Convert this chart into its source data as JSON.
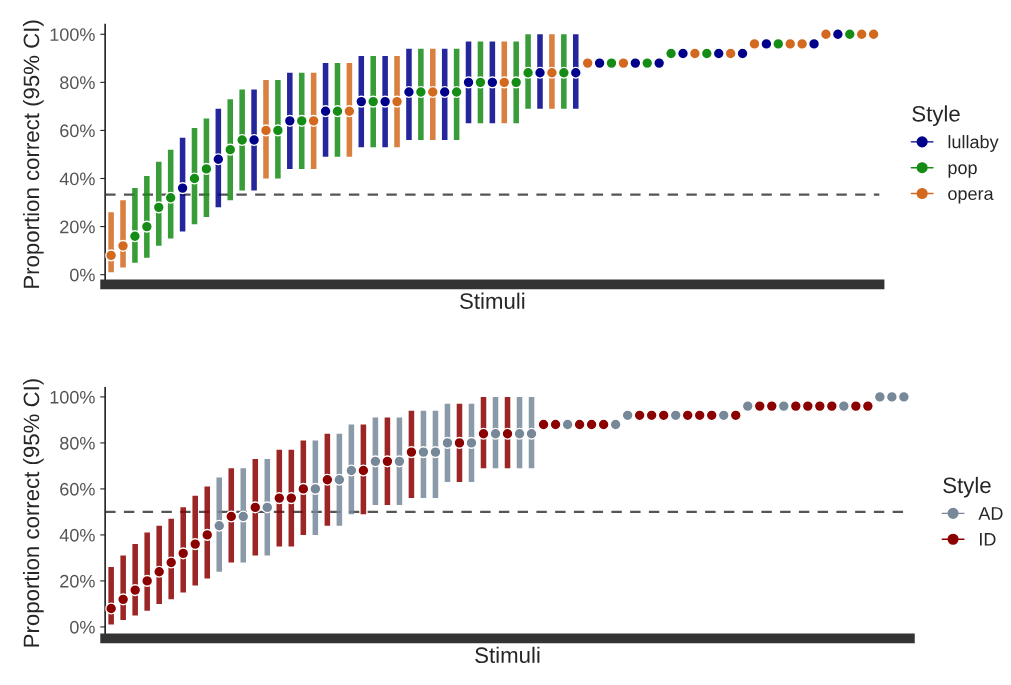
{
  "chart_data": [
    {
      "type": "scatter",
      "ylabel": "Proportion correct (95% CI)",
      "xlabel": "Stimuli",
      "legend_title": "Style",
      "legend": "right",
      "grid": false,
      "marker": "circle",
      "tick_labels": "y",
      "categories": [
        null,
        null,
        null,
        null,
        null,
        null,
        null,
        null,
        null,
        null,
        null,
        null,
        null,
        null,
        null,
        null,
        null,
        null,
        null,
        null,
        null,
        null,
        null,
        null,
        null,
        null,
        null,
        null,
        null,
        null,
        null,
        null,
        null,
        null,
        null,
        null,
        null,
        null,
        null,
        null,
        null,
        null,
        null,
        null,
        null,
        null,
        null,
        null,
        null,
        null,
        null,
        null,
        null,
        null,
        null,
        null,
        null,
        null,
        null,
        null,
        null,
        null,
        null,
        null,
        null
      ],
      "ylim": [
        -4,
        104
      ],
      "yticks": [
        {
          "value": 0,
          "label": "0%"
        },
        {
          "value": 20,
          "label": "20%"
        },
        {
          "value": 40,
          "label": "40%"
        },
        {
          "value": 60,
          "label": "60%"
        },
        {
          "value": 80,
          "label": "80%"
        },
        {
          "value": 100,
          "label": "100%"
        }
      ],
      "ref_lines": [
        {
          "axis": "y",
          "value": 33.3,
          "color": "#555555",
          "line_style": "dashed"
        }
      ],
      "series": [
        {
          "name": "lullaby",
          "color": "#00008b",
          "values": [
            null,
            null,
            null,
            null,
            null,
            null,
            36,
            null,
            null,
            48,
            null,
            null,
            56,
            null,
            null,
            64,
            null,
            null,
            68,
            null,
            null,
            72,
            null,
            72,
            null,
            76,
            null,
            null,
            76,
            null,
            80,
            null,
            80,
            null,
            null,
            null,
            84,
            null,
            null,
            84,
            null,
            88,
            null,
            null,
            88,
            null,
            88,
            null,
            92,
            null,
            null,
            92,
            null,
            92,
            null,
            96,
            null,
            null,
            null,
            96,
            null,
            100,
            null,
            null,
            null
          ],
          "errors": [
            null,
            null,
            null,
            null,
            null,
            null,
            [
              18,
              57
            ],
            null,
            null,
            [
              28,
              69
            ],
            null,
            null,
            [
              35,
              77
            ],
            null,
            null,
            [
              44,
              84
            ],
            null,
            null,
            [
              49,
              88
            ],
            null,
            null,
            [
              53,
              91
            ],
            null,
            [
              53,
              91
            ],
            null,
            [
              56,
              94
            ],
            null,
            null,
            [
              56,
              94
            ],
            null,
            [
              63,
              97
            ],
            null,
            [
              63,
              97
            ],
            null,
            null,
            null,
            [
              69,
              100
            ],
            null,
            null,
            [
              69,
              100
            ],
            null,
            null,
            null,
            null,
            null,
            null,
            null,
            null,
            null,
            null,
            null,
            null,
            null,
            null,
            null,
            null,
            null,
            null,
            null,
            null,
            null,
            null,
            null,
            null,
            null
          ]
        },
        {
          "name": "pop",
          "color": "#158c15",
          "values": [
            null,
            null,
            16,
            20,
            28,
            32,
            null,
            40,
            44,
            null,
            52,
            56,
            null,
            null,
            60,
            null,
            64,
            null,
            null,
            68,
            null,
            null,
            72,
            null,
            null,
            null,
            76,
            null,
            null,
            76,
            null,
            80,
            null,
            null,
            80,
            84,
            null,
            null,
            84,
            null,
            null,
            null,
            88,
            null,
            null,
            88,
            null,
            92,
            null,
            null,
            92,
            null,
            null,
            null,
            null,
            null,
            96,
            null,
            null,
            null,
            null,
            null,
            100,
            null,
            null
          ],
          "errors": [
            null,
            null,
            [
              5,
              36
            ],
            [
              7,
              41
            ],
            [
              12,
              47
            ],
            [
              15,
              52
            ],
            null,
            [
              21,
              61
            ],
            [
              24,
              65
            ],
            null,
            [
              31,
              73
            ],
            [
              35,
              77
            ],
            null,
            null,
            [
              40,
              81
            ],
            null,
            [
              44,
              84
            ],
            null,
            null,
            [
              49,
              88
            ],
            null,
            null,
            [
              53,
              91
            ],
            null,
            null,
            null,
            [
              56,
              94
            ],
            null,
            null,
            [
              56,
              94
            ],
            null,
            [
              63,
              97
            ],
            null,
            null,
            [
              63,
              97
            ],
            [
              69,
              100
            ],
            null,
            null,
            [
              69,
              100
            ],
            null,
            null,
            null,
            null,
            null,
            null,
            null,
            null,
            null,
            null,
            null,
            null,
            null,
            null,
            null,
            null,
            null,
            null,
            null,
            null,
            null,
            null,
            null,
            null,
            null,
            null
          ]
        },
        {
          "name": "opera",
          "color": "#d2691e",
          "values": [
            8,
            12,
            null,
            null,
            null,
            null,
            null,
            null,
            null,
            null,
            null,
            null,
            null,
            60,
            null,
            null,
            null,
            64,
            null,
            null,
            68,
            null,
            null,
            null,
            72,
            null,
            null,
            76,
            null,
            null,
            null,
            null,
            null,
            80,
            null,
            null,
            null,
            84,
            null,
            null,
            88,
            null,
            null,
            88,
            null,
            null,
            null,
            null,
            null,
            92,
            null,
            null,
            92,
            null,
            96,
            null,
            null,
            96,
            96,
            null,
            100,
            null,
            null,
            100,
            100
          ],
          "errors": [
            [
              1,
              26
            ],
            [
              3,
              31
            ],
            null,
            null,
            null,
            null,
            null,
            null,
            null,
            null,
            null,
            null,
            null,
            [
              40,
              81
            ],
            null,
            null,
            null,
            [
              44,
              84
            ],
            null,
            null,
            [
              49,
              88
            ],
            null,
            null,
            null,
            [
              53,
              91
            ],
            null,
            null,
            [
              56,
              94
            ],
            null,
            null,
            null,
            null,
            null,
            [
              63,
              97
            ],
            null,
            null,
            null,
            [
              69,
              100
            ],
            null,
            null,
            null,
            null,
            null,
            null,
            null,
            null,
            null,
            null,
            null,
            null,
            null,
            null,
            null,
            null,
            null,
            null,
            null,
            null,
            null,
            null,
            null,
            null,
            null,
            null,
            null
          ]
        }
      ]
    },
    {
      "type": "scatter",
      "ylabel": "Proportion correct (95% CI)",
      "xlabel": "Stimuli",
      "legend_title": "Style",
      "legend": "right",
      "grid": false,
      "marker": "circle",
      "tick_labels": "y",
      "categories": [
        null,
        null,
        null,
        null,
        null,
        null,
        null,
        null,
        null,
        null,
        null,
        null,
        null,
        null,
        null,
        null,
        null,
        null,
        null,
        null,
        null,
        null,
        null,
        null,
        null,
        null,
        null,
        null,
        null,
        null,
        null,
        null,
        null,
        null,
        null,
        null,
        null,
        null,
        null,
        null,
        null,
        null,
        null,
        null,
        null,
        null,
        null,
        null,
        null,
        null,
        null,
        null,
        null,
        null,
        null,
        null,
        null,
        null,
        null,
        null,
        null,
        null,
        null,
        null,
        null,
        null,
        null
      ],
      "ylim": [
        -5,
        104
      ],
      "yticks": [
        {
          "value": 0,
          "label": "0%"
        },
        {
          "value": 20,
          "label": "20%"
        },
        {
          "value": 40,
          "label": "40%"
        },
        {
          "value": 60,
          "label": "60%"
        },
        {
          "value": 80,
          "label": "80%"
        },
        {
          "value": 100,
          "label": "100%"
        }
      ],
      "ref_lines": [
        {
          "axis": "y",
          "value": 50,
          "color": "#555555",
          "line_style": "dashed"
        }
      ],
      "series": [
        {
          "name": "AD",
          "color": "#778899",
          "values": [
            null,
            null,
            null,
            null,
            null,
            null,
            null,
            null,
            null,
            44,
            null,
            48,
            null,
            52,
            null,
            null,
            null,
            60,
            null,
            64,
            68,
            null,
            72,
            null,
            72,
            null,
            76,
            76,
            80,
            null,
            80,
            null,
            84,
            null,
            84,
            84,
            null,
            null,
            88,
            null,
            null,
            null,
            88,
            92,
            null,
            null,
            null,
            92,
            null,
            null,
            null,
            92,
            null,
            96,
            null,
            null,
            96,
            null,
            null,
            null,
            null,
            96,
            null,
            null,
            100,
            100,
            100
          ],
          "errors": [
            null,
            null,
            null,
            null,
            null,
            null,
            null,
            null,
            null,
            [
              24,
              65
            ],
            null,
            [
              28,
              69
            ],
            null,
            [
              31,
              73
            ],
            null,
            null,
            null,
            [
              40,
              81
            ],
            null,
            [
              44,
              84
            ],
            [
              49,
              88
            ],
            null,
            [
              53,
              91
            ],
            null,
            [
              53,
              91
            ],
            null,
            [
              56,
              94
            ],
            [
              56,
              94
            ],
            [
              63,
              97
            ],
            null,
            [
              63,
              97
            ],
            null,
            [
              69,
              100
            ],
            null,
            [
              69,
              100
            ],
            [
              69,
              100
            ],
            null,
            null,
            null,
            null,
            null,
            null,
            null,
            null,
            null,
            null,
            null,
            null,
            null,
            null,
            null,
            null,
            null,
            null,
            null,
            null,
            null,
            null,
            null,
            null,
            null,
            null,
            null,
            null,
            null,
            null,
            null
          ]
        },
        {
          "name": "ID",
          "color": "#8b0000",
          "values": [
            8,
            12,
            16,
            20,
            24,
            28,
            32,
            36,
            40,
            null,
            48,
            null,
            52,
            null,
            56,
            56,
            60,
            null,
            64,
            null,
            null,
            68,
            null,
            72,
            null,
            76,
            null,
            null,
            null,
            80,
            null,
            84,
            null,
            84,
            null,
            null,
            88,
            88,
            null,
            88,
            88,
            88,
            null,
            null,
            92,
            92,
            92,
            null,
            92,
            92,
            92,
            null,
            92,
            null,
            96,
            96,
            null,
            96,
            96,
            96,
            96,
            null,
            96,
            96,
            null,
            null,
            null
          ],
          "errors": [
            [
              1,
              26
            ],
            [
              3,
              31
            ],
            [
              5,
              36
            ],
            [
              7,
              41
            ],
            [
              10,
              44
            ],
            [
              12,
              47
            ],
            [
              15,
              52
            ],
            [
              18,
              57
            ],
            [
              21,
              61
            ],
            null,
            [
              28,
              69
            ],
            null,
            [
              31,
              73
            ],
            null,
            [
              35,
              77
            ],
            [
              35,
              77
            ],
            [
              40,
              81
            ],
            null,
            [
              44,
              84
            ],
            null,
            null,
            [
              49,
              88
            ],
            null,
            [
              53,
              91
            ],
            null,
            [
              56,
              94
            ],
            null,
            null,
            null,
            [
              63,
              97
            ],
            null,
            [
              69,
              100
            ],
            null,
            [
              69,
              100
            ],
            null,
            null,
            null,
            null,
            null,
            null,
            null,
            null,
            null,
            null,
            null,
            null,
            null,
            null,
            null,
            null,
            null,
            null,
            null,
            null,
            null,
            null,
            null,
            null,
            null,
            null,
            null,
            null,
            null,
            null,
            null,
            null,
            null
          ]
        }
      ]
    }
  ]
}
